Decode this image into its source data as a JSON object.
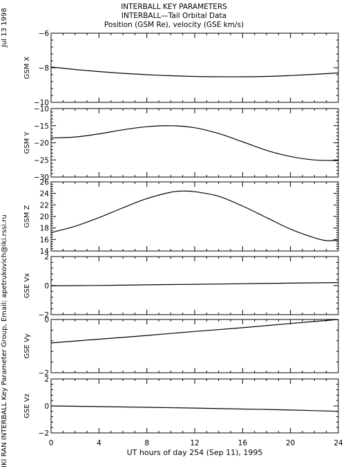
{
  "header": {
    "line1": "INTERBALL KEY PARAMETERS",
    "line2": "INTERBALL—Tail Orbital Data",
    "line3": "Position (GSM Re), velocity (GSE km/s)"
  },
  "side": {
    "date": "Jul 13 1998",
    "credit": "IKI RAN INTERBALL Key Parameter Group, Email: apetrukovich@iki.rssi.ru"
  },
  "chart_data": {
    "type": "line",
    "xlabel": "UT hours of day 254 (Sep 11), 1995",
    "x_range": [
      0,
      24
    ],
    "x_ticks": [
      0,
      4,
      8,
      12,
      16,
      20,
      24
    ],
    "panels": [
      {
        "ylabel": "GSM X",
        "ylim": [
          -10,
          -6
        ],
        "y_ticks": [
          -10,
          -8,
          -6
        ],
        "x": [
          0,
          2,
          4,
          6,
          8,
          10,
          12,
          14,
          16,
          18,
          20,
          22,
          24
        ],
        "values": [
          -7.95,
          -8.1,
          -8.22,
          -8.32,
          -8.4,
          -8.46,
          -8.5,
          -8.52,
          -8.52,
          -8.5,
          -8.45,
          -8.38,
          -8.3
        ]
      },
      {
        "ylabel": "GSM Y",
        "ylim": [
          -30,
          -10
        ],
        "y_ticks": [
          -30,
          -25,
          -20,
          -15,
          -10
        ],
        "x": [
          0,
          2,
          4,
          6,
          8,
          10,
          12,
          14,
          16,
          18,
          20,
          22,
          24
        ],
        "values": [
          -18.6,
          -18.3,
          -17.4,
          -16.2,
          -15.3,
          -15.0,
          -15.6,
          -17.3,
          -19.7,
          -22.2,
          -24.0,
          -25.0,
          -25.2
        ]
      },
      {
        "ylabel": "GSM Z",
        "ylim": [
          14,
          26
        ],
        "y_ticks": [
          14,
          16,
          18,
          20,
          22,
          24,
          26
        ],
        "x": [
          0,
          2,
          4,
          6,
          8,
          10,
          11,
          12,
          14,
          16,
          18,
          20,
          22,
          23,
          24
        ],
        "values": [
          17.2,
          18.3,
          19.8,
          21.5,
          23.1,
          24.2,
          24.4,
          24.3,
          23.5,
          21.8,
          19.8,
          17.8,
          16.3,
          15.8,
          15.9
        ]
      },
      {
        "ylabel": "GSE Vx",
        "ylim": [
          -2,
          2
        ],
        "y_ticks": [
          -2,
          0,
          2
        ],
        "x": [
          0,
          4,
          8,
          12,
          16,
          20,
          24
        ],
        "values": [
          -0.02,
          0.01,
          0.05,
          0.09,
          0.13,
          0.17,
          0.21
        ]
      },
      {
        "ylabel": "GSE Vy",
        "ylim": [
          -2,
          0
        ],
        "y_ticks": [
          -2,
          0
        ],
        "x": [
          0,
          4,
          8,
          12,
          16,
          20,
          24
        ],
        "values": [
          -0.88,
          -0.74,
          -0.6,
          -0.45,
          -0.31,
          -0.15,
          0.0
        ]
      },
      {
        "ylabel": "GSE Vz",
        "ylim": [
          -2,
          2
        ],
        "y_ticks": [
          -2,
          0,
          2
        ],
        "x": [
          0,
          4,
          8,
          12,
          16,
          20,
          24
        ],
        "values": [
          0.0,
          -0.05,
          -0.1,
          -0.16,
          -0.23,
          -0.3,
          -0.4
        ]
      }
    ]
  }
}
